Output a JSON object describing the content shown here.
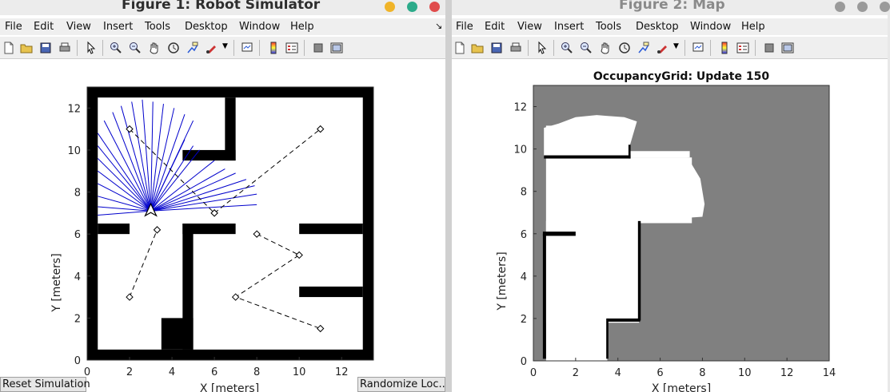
{
  "fig1": {
    "title": "Figure 1: Robot Simulator",
    "menus": [
      "File",
      "Edit",
      "View",
      "Insert",
      "Tools",
      "Desktop",
      "Window",
      "Help"
    ],
    "xlabel": "X [meters]",
    "ylabel": "Y [meters]",
    "xticks": [
      "0",
      "2",
      "4",
      "6",
      "8",
      "10",
      "12"
    ],
    "yticks": [
      "0",
      "2",
      "4",
      "6",
      "8",
      "10",
      "12"
    ],
    "reset_button": "Reset Simulation",
    "randomize_button": "Randomize Loc..."
  },
  "fig2": {
    "title": "Figure 2: Map",
    "menus": [
      "File",
      "Edit",
      "View",
      "Insert",
      "Tools",
      "Desktop",
      "Window",
      "Help"
    ],
    "plot_title": "OccupancyGrid: Update 150",
    "xlabel": "X [meters]",
    "ylabel": "Y [meters]",
    "xticks": [
      "0",
      "2",
      "4",
      "6",
      "8",
      "10",
      "12",
      "14"
    ],
    "yticks": [
      "0",
      "2",
      "4",
      "6",
      "8",
      "10",
      "12"
    ]
  },
  "toolbar_icons": [
    "new-file-icon",
    "open-folder-icon",
    "save-icon",
    "print-icon",
    "pointer-icon",
    "zoom-in-icon",
    "zoom-out-icon",
    "pan-hand-icon",
    "rotate-3d-icon",
    "data-cursor-icon",
    "brush-icon",
    "dropdown-arrow-icon",
    "link-plot-icon",
    "colorbar-icon",
    "legend-icon",
    "hide-plot-tools-icon",
    "show-plot-tools-icon"
  ],
  "colors": {
    "close": "#e04b4b",
    "maximize": "#2cab8a",
    "minimize": "#f0b429",
    "laser": "#0000cc",
    "unknown": "#808080"
  },
  "chart_data": [
    {
      "type": "scatter",
      "title": "",
      "xlabel": "X [meters]",
      "ylabel": "Y [meters]",
      "xlim": [
        0,
        13.5
      ],
      "ylim": [
        0,
        13
      ],
      "series": [
        {
          "x": [
            2,
            3.3
          ],
          "y": [
            3,
            6.2
          ]
        },
        {
          "x": [
            2,
            6
          ],
          "y": [
            11,
            7
          ]
        },
        {
          "x": [
            6,
            11
          ],
          "y": [
            7,
            11
          ]
        },
        {
          "x": [
            8,
            10,
            7,
            11
          ],
          "y": [
            6,
            5,
            3,
            1.5
          ]
        }
      ],
      "robot_pose": {
        "x": 3,
        "y": 7.1
      }
    },
    {
      "type": "heatmap",
      "title": "OccupancyGrid: Update 150",
      "xlabel": "X [meters]",
      "ylabel": "Y [meters]",
      "xlim": [
        0,
        14
      ],
      "ylim": [
        0,
        13
      ]
    }
  ]
}
